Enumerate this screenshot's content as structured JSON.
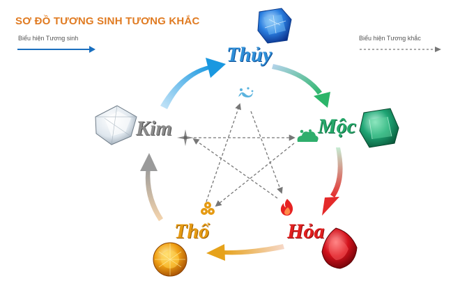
{
  "title": "SƠ ĐỒ TƯƠNG SINH TƯƠNG KHẮC",
  "legend": {
    "generating": "Biểu hiện Tương sinh",
    "overcoming": "Biểu hiện Tương khắc"
  },
  "elements": {
    "thuy": "Thủy",
    "moc": "Mộc",
    "hoa": "Hỏa",
    "tho": "Thổ",
    "kim": "Kim"
  },
  "colors": {
    "title": "#e07b22",
    "generating_arrow": "#1a6fbf",
    "overcoming_arrow": "#777777",
    "thuy": "#2f8fd8",
    "moc": "#26a86a",
    "hoa": "#e11f1f",
    "tho": "#e59a12",
    "kim": "#8c8c8c"
  },
  "icons": {
    "thuy": "water-wave-icon",
    "moc": "cloud-swirl-icon",
    "hoa": "flame-icon",
    "tho": "earth-dots-icon",
    "kim": "sparkle-star-icon"
  },
  "gems": {
    "thuy": "blue-sapphire",
    "moc": "green-emerald",
    "hoa": "red-ruby",
    "tho": "yellow-citrine",
    "kim": "white-diamond"
  }
}
